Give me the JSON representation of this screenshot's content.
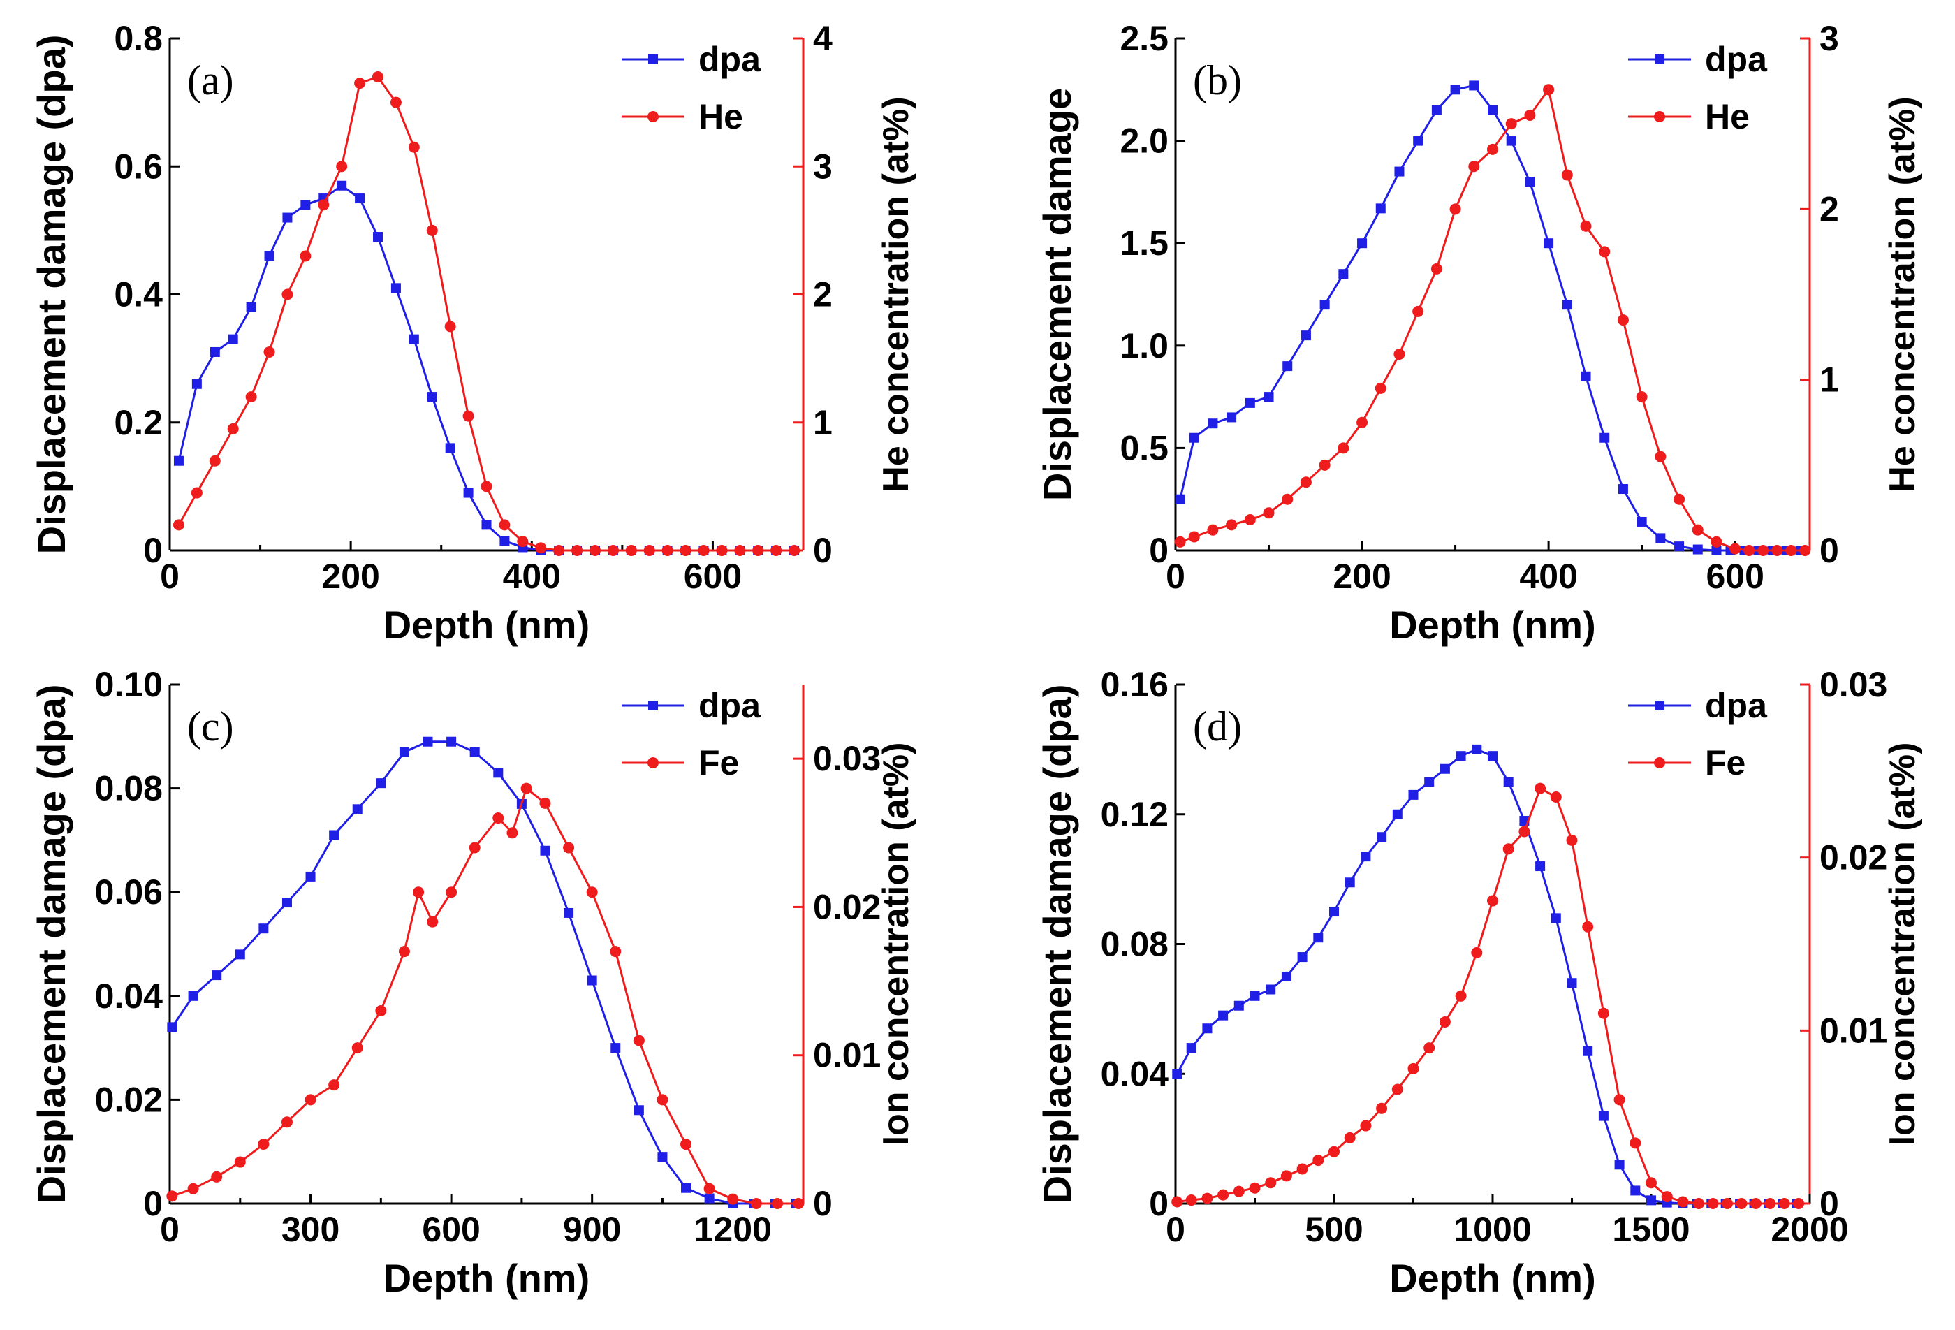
{
  "colors": {
    "dpa": "#1f1fe6",
    "ion": "#ee1c1c",
    "axis": "#000000"
  },
  "chart_data": [
    {
      "type": "line",
      "panel_label": "(a)",
      "xlabel": "Depth (nm)",
      "ylabel": "Displacement damage (dpa)",
      "y2label": "He concentration (at%)",
      "xlim": [
        0,
        700
      ],
      "ylim": [
        0,
        0.8
      ],
      "y2lim": [
        0,
        4
      ],
      "xticks": [
        0,
        200,
        400,
        600
      ],
      "xtick_labels": [
        "0",
        "200",
        "400",
        "600"
      ],
      "yticks": [
        0,
        0.2,
        0.4,
        0.6,
        0.8
      ],
      "ytick_labels": [
        "0",
        "0.2",
        "0.4",
        "0.6",
        "0.8"
      ],
      "y2ticks": [
        0,
        1,
        2,
        3,
        4
      ],
      "y2tick_labels": [
        "0",
        "1",
        "2",
        "3",
        "4"
      ],
      "legend": [
        "dpa",
        "He"
      ],
      "series": [
        {
          "name": "dpa",
          "axis": "left",
          "marker": "square",
          "x": [
            10,
            30,
            50,
            70,
            90,
            110,
            130,
            150,
            170,
            190,
            210,
            230,
            250,
            270,
            290,
            310,
            330,
            350,
            370,
            390,
            410
          ],
          "y": [
            0.14,
            0.26,
            0.31,
            0.33,
            0.38,
            0.46,
            0.52,
            0.54,
            0.55,
            0.57,
            0.55,
            0.49,
            0.41,
            0.33,
            0.24,
            0.16,
            0.09,
            0.04,
            0.015,
            0.005,
            0
          ]
        },
        {
          "name": "He",
          "axis": "right",
          "marker": "circle",
          "x": [
            10,
            30,
            50,
            70,
            90,
            110,
            130,
            150,
            170,
            190,
            210,
            230,
            250,
            270,
            290,
            310,
            330,
            350,
            370,
            390,
            410,
            430
          ],
          "y": [
            0.2,
            0.45,
            0.7,
            0.95,
            1.2,
            1.55,
            2.0,
            2.3,
            2.7,
            3.0,
            3.65,
            3.7,
            3.5,
            3.15,
            2.5,
            1.75,
            1.05,
            0.5,
            0.2,
            0.07,
            0.02,
            0
          ]
        }
      ],
      "tail_x_end": 700
    },
    {
      "type": "line",
      "panel_label": "(b)",
      "xlabel": "Depth (nm)",
      "ylabel": "Displacement damage",
      "y2label": "He concentration (at%)",
      "xlim": [
        0,
        680
      ],
      "ylim": [
        0,
        2.5
      ],
      "y2lim": [
        0,
        3
      ],
      "xticks": [
        0,
        200,
        400,
        600
      ],
      "xtick_labels": [
        "0",
        "200",
        "400",
        "600"
      ],
      "yticks": [
        0,
        0.5,
        1.0,
        1.5,
        2.0,
        2.5
      ],
      "ytick_labels": [
        "0",
        "0.5",
        "1.0",
        "1.5",
        "2.0",
        "2.5"
      ],
      "y2ticks": [
        0,
        1,
        2,
        3
      ],
      "y2tick_labels": [
        "0",
        "1",
        "2",
        "3"
      ],
      "legend": [
        "dpa",
        "He"
      ],
      "series": [
        {
          "name": "dpa",
          "axis": "left",
          "marker": "square",
          "x": [
            5,
            20,
            40,
            60,
            80,
            100,
            120,
            140,
            160,
            180,
            200,
            220,
            240,
            260,
            280,
            300,
            320,
            340,
            360,
            380,
            400,
            420,
            440,
            460,
            480,
            500,
            520,
            540,
            560,
            580
          ],
          "y": [
            0.25,
            0.55,
            0.62,
            0.65,
            0.72,
            0.75,
            0.9,
            1.05,
            1.2,
            1.35,
            1.5,
            1.67,
            1.85,
            2.0,
            2.15,
            2.25,
            2.27,
            2.15,
            2.0,
            1.8,
            1.5,
            1.2,
            0.85,
            0.55,
            0.3,
            0.14,
            0.06,
            0.02,
            0.005,
            0
          ]
        },
        {
          "name": "He",
          "axis": "right",
          "marker": "circle",
          "x": [
            5,
            20,
            40,
            60,
            80,
            100,
            120,
            140,
            160,
            180,
            200,
            220,
            240,
            260,
            280,
            300,
            320,
            340,
            360,
            380,
            400,
            420,
            440,
            460,
            480,
            500,
            520,
            540,
            560,
            580,
            600
          ],
          "y": [
            0.05,
            0.08,
            0.12,
            0.15,
            0.18,
            0.22,
            0.3,
            0.4,
            0.5,
            0.6,
            0.75,
            0.95,
            1.15,
            1.4,
            1.65,
            2.0,
            2.25,
            2.35,
            2.5,
            2.55,
            2.7,
            2.2,
            1.9,
            1.75,
            1.35,
            0.9,
            0.55,
            0.3,
            0.12,
            0.05,
            0.01
          ]
        }
      ],
      "tail_x_end": 680
    },
    {
      "type": "line",
      "panel_label": "(c)",
      "xlabel": "Depth (nm)",
      "ylabel": "Displacement damage (dpa)",
      "y2label": "Ion concentration (at%)",
      "xlim": [
        0,
        1350
      ],
      "ylim": [
        0,
        0.1
      ],
      "y2lim": [
        0,
        0.035
      ],
      "xticks": [
        0,
        300,
        600,
        900,
        1200
      ],
      "xtick_labels": [
        "0",
        "300",
        "600",
        "900",
        "1200"
      ],
      "yticks": [
        0,
        0.02,
        0.04,
        0.06,
        0.08,
        0.1
      ],
      "ytick_labels": [
        "0",
        "0.02",
        "0.04",
        "0.06",
        "0.08",
        "0.10"
      ],
      "y2ticks": [
        0,
        0.01,
        0.02,
        0.03
      ],
      "y2tick_labels": [
        "0",
        "0.01",
        "0.02",
        "0.03"
      ],
      "legend": [
        "dpa",
        "Fe"
      ],
      "series": [
        {
          "name": "dpa",
          "axis": "left",
          "marker": "square",
          "x": [
            5,
            50,
            100,
            150,
            200,
            250,
            300,
            350,
            400,
            450,
            500,
            550,
            600,
            650,
            700,
            750,
            800,
            850,
            900,
            950,
            1000,
            1050,
            1100,
            1150,
            1200
          ],
          "y": [
            0.034,
            0.04,
            0.044,
            0.048,
            0.053,
            0.058,
            0.063,
            0.071,
            0.076,
            0.081,
            0.087,
            0.089,
            0.089,
            0.087,
            0.083,
            0.077,
            0.068,
            0.056,
            0.043,
            0.03,
            0.018,
            0.009,
            0.003,
            0.001,
            0
          ]
        },
        {
          "name": "Fe",
          "axis": "right",
          "marker": "circle",
          "x": [
            5,
            50,
            100,
            150,
            200,
            250,
            300,
            350,
            400,
            450,
            500,
            530,
            560,
            600,
            650,
            700,
            730,
            760,
            800,
            850,
            900,
            950,
            1000,
            1050,
            1100,
            1150,
            1200,
            1250
          ],
          "y": [
            0.0005,
            0.001,
            0.0018,
            0.0028,
            0.004,
            0.0055,
            0.007,
            0.008,
            0.0105,
            0.013,
            0.017,
            0.021,
            0.019,
            0.021,
            0.024,
            0.026,
            0.025,
            0.028,
            0.027,
            0.024,
            0.021,
            0.017,
            0.011,
            0.007,
            0.004,
            0.001,
            0.0003,
            0
          ]
        }
      ],
      "tail_x_end": 1350
    },
    {
      "type": "line",
      "panel_label": "(d)",
      "xlabel": "Depth (nm)",
      "ylabel": "Displacement damage (dpa)",
      "y2label": "Ion concentration (at%)",
      "xlim": [
        0,
        2000
      ],
      "ylim": [
        0,
        0.16
      ],
      "y2lim": [
        0,
        0.03
      ],
      "xticks": [
        0,
        500,
        1000,
        1500,
        2000
      ],
      "xtick_labels": [
        "0",
        "500",
        "1000",
        "1500",
        "2000"
      ],
      "yticks": [
        0,
        0.04,
        0.08,
        0.12,
        0.16
      ],
      "ytick_labels": [
        "0",
        "0.04",
        "0.08",
        "0.12",
        "0.16"
      ],
      "y2ticks": [
        0,
        0.01,
        0.02,
        0.03
      ],
      "y2tick_labels": [
        "0",
        "0.01",
        "0.02",
        "0.03"
      ],
      "legend": [
        "dpa",
        "Fe"
      ],
      "series": [
        {
          "name": "dpa",
          "axis": "left",
          "marker": "square",
          "x": [
            5,
            50,
            100,
            150,
            200,
            250,
            300,
            350,
            400,
            450,
            500,
            550,
            600,
            650,
            700,
            750,
            800,
            850,
            900,
            950,
            1000,
            1050,
            1100,
            1150,
            1200,
            1250,
            1300,
            1350,
            1400,
            1450,
            1500,
            1550,
            1600
          ],
          "y": [
            0.04,
            0.048,
            0.054,
            0.058,
            0.061,
            0.064,
            0.066,
            0.07,
            0.076,
            0.082,
            0.09,
            0.099,
            0.107,
            0.113,
            0.12,
            0.126,
            0.13,
            0.134,
            0.138,
            0.14,
            0.138,
            0.13,
            0.118,
            0.104,
            0.088,
            0.068,
            0.047,
            0.027,
            0.012,
            0.004,
            0.001,
            0.0003,
            0
          ]
        },
        {
          "name": "Fe",
          "axis": "right",
          "marker": "circle",
          "x": [
            5,
            50,
            100,
            150,
            200,
            250,
            300,
            350,
            400,
            450,
            500,
            550,
            600,
            650,
            700,
            750,
            800,
            850,
            900,
            950,
            1000,
            1050,
            1100,
            1150,
            1200,
            1250,
            1300,
            1350,
            1400,
            1450,
            1500,
            1550,
            1600,
            1650
          ],
          "y": [
            0.0001,
            0.0002,
            0.0003,
            0.0005,
            0.0007,
            0.0009,
            0.0012,
            0.0016,
            0.002,
            0.0025,
            0.003,
            0.0038,
            0.0045,
            0.0055,
            0.0066,
            0.0078,
            0.009,
            0.0105,
            0.012,
            0.0145,
            0.0175,
            0.0205,
            0.0215,
            0.024,
            0.0235,
            0.021,
            0.016,
            0.011,
            0.006,
            0.0035,
            0.0012,
            0.0004,
            0.0001,
            0
          ]
        }
      ],
      "tail_x_end": 2000
    }
  ]
}
